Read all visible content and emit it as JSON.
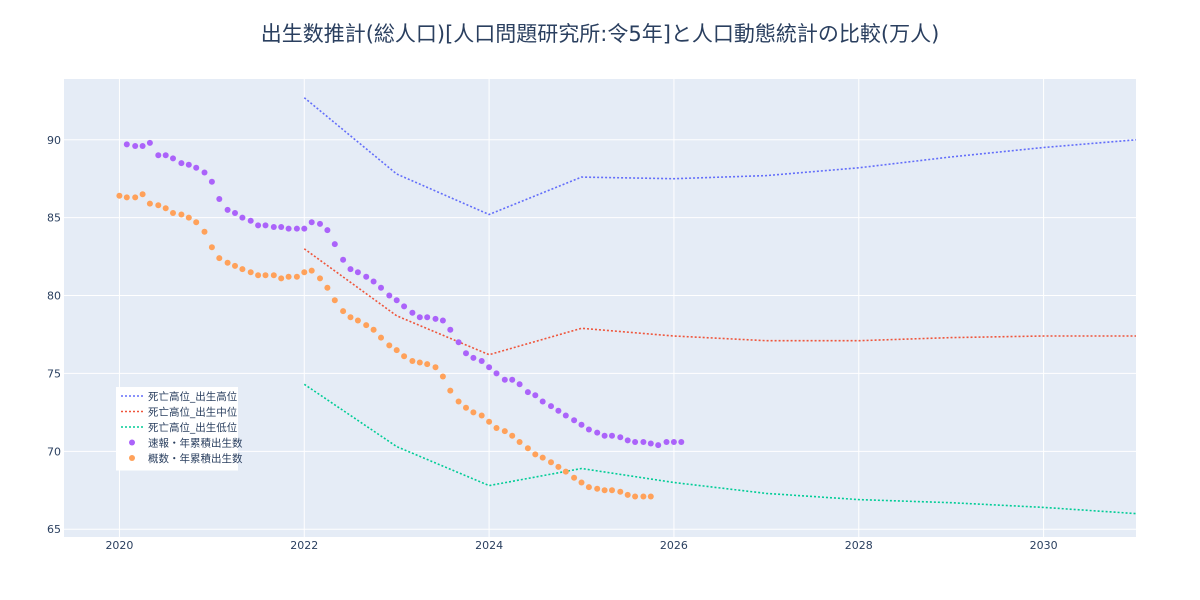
{
  "chart_data": {
    "type": "line",
    "title": "出生数推計(総人口)[人口問題研究所:令5年]と人口動態統計の比較(万人)",
    "xlabel": "",
    "ylabel": "",
    "xlim": [
      2019.4,
      2031.0
    ],
    "ylim": [
      64.5,
      93.9
    ],
    "x_ticks": [
      2020,
      2022,
      2024,
      2026,
      2028,
      2030
    ],
    "y_ticks": [
      65,
      70,
      75,
      80,
      85,
      90
    ],
    "grid": true,
    "legend_position": "bottom-left",
    "plot_bg": "#e5ecf6",
    "series": [
      {
        "name": "死亡高位_出生高位",
        "mode": "dotted-line",
        "color": "#636efa",
        "x": [
          2022,
          2023,
          2024,
          2025,
          2026,
          2027,
          2028,
          2029,
          2030,
          2031
        ],
        "y": [
          92.7,
          87.8,
          85.2,
          87.6,
          87.5,
          87.7,
          88.2,
          88.9,
          89.5,
          90.0
        ]
      },
      {
        "name": "死亡高位_出生中位",
        "mode": "dotted-line",
        "color": "#ef553b",
        "x": [
          2022,
          2023,
          2024,
          2025,
          2026,
          2027,
          2028,
          2029,
          2030,
          2031
        ],
        "y": [
          83.0,
          78.7,
          76.2,
          77.9,
          77.4,
          77.1,
          77.1,
          77.3,
          77.4,
          77.4
        ]
      },
      {
        "name": "死亡高位_出生低位",
        "mode": "dotted-line",
        "color": "#00cc96",
        "x": [
          2022,
          2023,
          2024,
          2025,
          2026,
          2027,
          2028,
          2029,
          2030,
          2031
        ],
        "y": [
          74.3,
          70.3,
          67.8,
          68.9,
          68.0,
          67.3,
          66.9,
          66.7,
          66.4,
          66.0
        ]
      },
      {
        "name": "速報・年累積出生数",
        "mode": "markers",
        "color": "#ab63fa",
        "x": [
          2020.08,
          2020.17,
          2020.25,
          2020.33,
          2020.42,
          2020.5,
          2020.58,
          2020.67,
          2020.75,
          2020.83,
          2020.92,
          2021.0,
          2021.08,
          2021.17,
          2021.25,
          2021.33,
          2021.42,
          2021.5,
          2021.58,
          2021.67,
          2021.75,
          2021.83,
          2021.92,
          2022.0,
          2022.08,
          2022.17,
          2022.25,
          2022.33,
          2022.42,
          2022.5,
          2022.58,
          2022.67,
          2022.75,
          2022.83,
          2022.92,
          2023.0,
          2023.08,
          2023.17,
          2023.25,
          2023.33,
          2023.42,
          2023.5,
          2023.58,
          2023.67,
          2023.75,
          2023.83,
          2023.92,
          2024.0,
          2024.08,
          2024.17,
          2024.25,
          2024.33,
          2024.42,
          2024.5,
          2024.58,
          2024.67,
          2024.75,
          2024.83,
          2024.92,
          2025.0,
          2025.08,
          2025.17,
          2025.25,
          2025.33,
          2025.42,
          2025.5,
          2025.58,
          2025.67,
          2025.75,
          2025.83,
          2025.92,
          2026.0,
          2026.08
        ],
        "y": [
          89.7,
          89.6,
          89.6,
          89.8,
          89.0,
          89.0,
          88.8,
          88.5,
          88.4,
          88.2,
          87.9,
          87.3,
          86.2,
          85.5,
          85.3,
          85.0,
          84.8,
          84.5,
          84.5,
          84.4,
          84.4,
          84.3,
          84.3,
          84.3,
          84.7,
          84.6,
          84.2,
          83.3,
          82.3,
          81.7,
          81.5,
          81.2,
          80.9,
          80.5,
          80.0,
          79.7,
          79.3,
          78.9,
          78.6,
          78.6,
          78.5,
          78.4,
          77.8,
          77.0,
          76.3,
          76.0,
          75.8,
          75.4,
          75.0,
          74.6,
          74.6,
          74.3,
          73.8,
          73.6,
          73.2,
          72.9,
          72.6,
          72.3,
          72.0,
          71.7,
          71.4,
          71.2,
          71.0,
          71.0,
          70.9,
          70.7,
          70.6,
          70.6,
          70.5,
          70.4,
          70.6,
          70.6,
          70.6
        ]
      },
      {
        "name": "概数・年累積出生数",
        "mode": "markers",
        "color": "#ffa15a",
        "x": [
          2020.0,
          2020.08,
          2020.17,
          2020.25,
          2020.33,
          2020.42,
          2020.5,
          2020.58,
          2020.67,
          2020.75,
          2020.83,
          2020.92,
          2021.0,
          2021.08,
          2021.17,
          2021.25,
          2021.33,
          2021.42,
          2021.5,
          2021.58,
          2021.67,
          2021.75,
          2021.83,
          2021.92,
          2022.0,
          2022.08,
          2022.17,
          2022.25,
          2022.33,
          2022.42,
          2022.5,
          2022.58,
          2022.67,
          2022.75,
          2022.83,
          2022.92,
          2023.0,
          2023.08,
          2023.17,
          2023.25,
          2023.33,
          2023.42,
          2023.5,
          2023.58,
          2023.67,
          2023.75,
          2023.83,
          2023.92,
          2024.0,
          2024.08,
          2024.17,
          2024.25,
          2024.33,
          2024.42,
          2024.5,
          2024.58,
          2024.67,
          2024.75,
          2024.83,
          2024.92,
          2025.0,
          2025.08,
          2025.17,
          2025.25,
          2025.33,
          2025.42,
          2025.5,
          2025.58,
          2025.67,
          2025.75
        ],
        "y": [
          86.4,
          86.3,
          86.3,
          86.5,
          85.9,
          85.8,
          85.6,
          85.3,
          85.2,
          85.0,
          84.7,
          84.1,
          83.1,
          82.4,
          82.1,
          81.9,
          81.7,
          81.5,
          81.3,
          81.3,
          81.3,
          81.1,
          81.2,
          81.2,
          81.5,
          81.6,
          81.1,
          80.5,
          79.7,
          79.0,
          78.6,
          78.4,
          78.1,
          77.8,
          77.3,
          76.8,
          76.5,
          76.1,
          75.8,
          75.7,
          75.6,
          75.4,
          74.8,
          73.9,
          73.2,
          72.8,
          72.5,
          72.3,
          71.9,
          71.5,
          71.3,
          71.0,
          70.6,
          70.2,
          69.8,
          69.6,
          69.3,
          69.0,
          68.7,
          68.3,
          68.0,
          67.7,
          67.6,
          67.5,
          67.5,
          67.4,
          67.2,
          67.1,
          67.1,
          67.1
        ]
      }
    ]
  }
}
